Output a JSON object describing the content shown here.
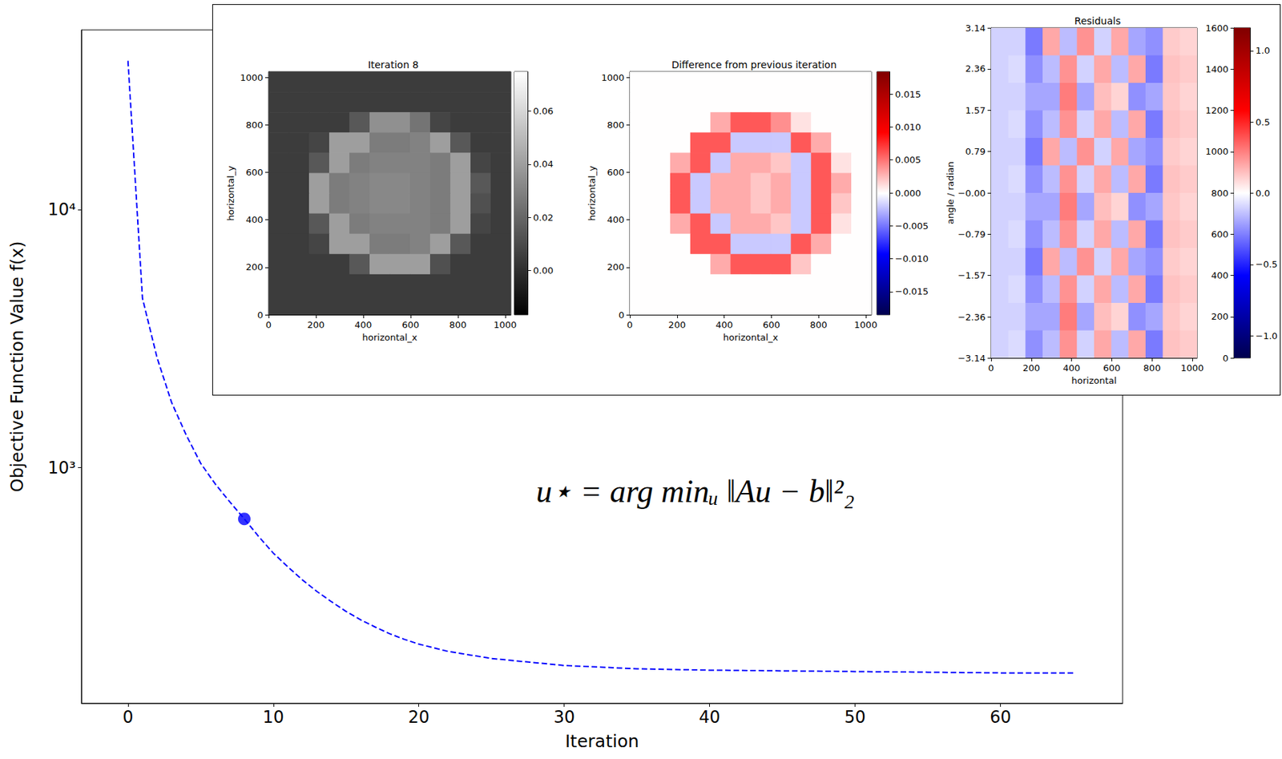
{
  "chart_data": [
    {
      "type": "line",
      "x_label": "Iteration",
      "y_label": "Objective Function Value f(x)",
      "annotation": "u⋆ = arg minᵤ ‖Au − b‖²₂",
      "x": [
        0,
        1,
        2,
        3,
        4,
        5,
        6,
        7,
        8,
        9,
        10,
        11,
        12,
        13,
        14,
        15,
        16,
        17,
        18,
        19,
        20,
        22,
        25,
        30,
        35,
        40,
        45,
        50,
        55,
        60,
        65
      ],
      "series": [
        {
          "values": [
            37800,
            4530,
            2670,
            1790,
            1340,
            1040,
            865,
            737,
            633,
            540,
            466,
            412,
            367,
            331,
            302,
            277,
            257,
            241,
            227,
            216,
            207,
            194,
            182,
            171,
            166,
            164,
            163,
            162,
            161,
            160,
            160
          ],
          "color": "#0000ff",
          "line_style": "dashed",
          "marker": "none"
        },
        {
          "type": "scatter",
          "x": [
            8
          ],
          "values": [
            633
          ],
          "color": "#0000ff",
          "marker": "circle"
        }
      ],
      "xlim": [
        -3.2,
        68.4
      ],
      "xticks": [
        0,
        10,
        20,
        30,
        40,
        50,
        60
      ],
      "ylim": [
        122,
        49800
      ],
      "yticks": [
        {
          "value": 1000,
          "label": "10³"
        },
        {
          "value": 10000,
          "label": "10⁴"
        }
      ],
      "log": "y",
      "grid": false
    },
    {
      "type": "heatmap",
      "title": "Iteration 8",
      "x_label": "horizontal_x",
      "y_label": "horizontal_y",
      "xlim": [
        0,
        1024
      ],
      "xticks": [
        0,
        200,
        400,
        600,
        800,
        1000
      ],
      "ylim": [
        0,
        1024
      ],
      "yticks": [
        0,
        200,
        400,
        600,
        800,
        1000
      ],
      "color": "gray",
      "cells": [
        [
          0.005,
          0.005,
          0.005,
          0.005,
          0.005,
          0.005,
          0.005,
          0.005,
          0.005,
          0.005,
          0.005,
          0.005
        ],
        [
          0.005,
          0.005,
          0.005,
          0.005,
          0.005,
          0.005,
          0.005,
          0.005,
          0.005,
          0.005,
          0.005,
          0.005
        ],
        [
          0.005,
          0.005,
          0.005,
          0.005,
          0.015,
          0.035,
          0.035,
          0.025,
          0.008,
          0.005,
          0.005,
          0.005
        ],
        [
          0.005,
          0.005,
          0.008,
          0.04,
          0.04,
          0.028,
          0.028,
          0.03,
          0.04,
          0.015,
          0.005,
          0.005
        ],
        [
          0.005,
          0.005,
          0.015,
          0.04,
          0.028,
          0.03,
          0.03,
          0.03,
          0.028,
          0.04,
          0.008,
          0.005
        ],
        [
          0.005,
          0.005,
          0.04,
          0.028,
          0.03,
          0.032,
          0.032,
          0.03,
          0.028,
          0.04,
          0.015,
          0.005
        ],
        [
          0.005,
          0.005,
          0.04,
          0.028,
          0.03,
          0.032,
          0.032,
          0.03,
          0.028,
          0.04,
          0.012,
          0.005
        ],
        [
          0.005,
          0.005,
          0.015,
          0.04,
          0.028,
          0.03,
          0.03,
          0.03,
          0.028,
          0.04,
          0.008,
          0.005
        ],
        [
          0.005,
          0.005,
          0.008,
          0.04,
          0.04,
          0.028,
          0.028,
          0.03,
          0.04,
          0.015,
          0.005,
          0.005
        ],
        [
          0.005,
          0.005,
          0.005,
          0.005,
          0.015,
          0.04,
          0.04,
          0.04,
          0.012,
          0.005,
          0.005,
          0.005
        ],
        [
          0.005,
          0.005,
          0.005,
          0.005,
          0.005,
          0.005,
          0.005,
          0.005,
          0.005,
          0.005,
          0.005,
          0.005
        ],
        [
          0.005,
          0.005,
          0.005,
          0.005,
          0.005,
          0.005,
          0.005,
          0.005,
          0.005,
          0.005,
          0.005,
          0.005
        ]
      ],
      "colorbar_lim": [
        -0.0166,
        0.0748
      ],
      "colorbar_ticks": [
        {
          "value": 0,
          "label": "0.00"
        },
        0.02,
        0.04,
        0.06
      ]
    },
    {
      "type": "heatmap",
      "title": "Difference from previous iteration",
      "x_label": "horizontal_x",
      "y_label": "horizontal_y",
      "xlim": [
        0,
        1024
      ],
      "xticks": [
        0,
        200,
        400,
        600,
        800,
        1000
      ],
      "ylim": [
        0,
        1024
      ],
      "yticks": [
        0,
        200,
        400,
        600,
        800,
        1000
      ],
      "color": "seismic",
      "cells": [
        [
          0,
          0,
          0,
          0,
          0,
          0,
          0,
          0,
          0,
          0,
          0,
          0
        ],
        [
          0,
          0,
          0,
          0,
          0,
          0,
          0,
          0,
          0,
          0,
          0,
          0
        ],
        [
          0,
          0,
          0,
          0,
          0.003,
          0.006,
          0.006,
          0.004,
          0.001,
          0,
          0,
          0
        ],
        [
          0,
          0,
          0,
          0.006,
          0.006,
          -0.002,
          -0.002,
          -0.002,
          0.006,
          0.003,
          0,
          0
        ],
        [
          0,
          0,
          0.003,
          0.006,
          -0.002,
          0.003,
          0.003,
          0.002,
          -0.002,
          0.006,
          0.001,
          0
        ],
        [
          0,
          0,
          0.006,
          -0.002,
          0.003,
          0.003,
          0.002,
          0.003,
          -0.002,
          0.006,
          0.003,
          0
        ],
        [
          0,
          0,
          0.006,
          -0.002,
          0.003,
          0.003,
          0.002,
          0.003,
          -0.002,
          0.006,
          0.002,
          0
        ],
        [
          0,
          0,
          0.003,
          0.006,
          -0.002,
          0.003,
          0.003,
          0.002,
          -0.002,
          0.006,
          0.001,
          0
        ],
        [
          0,
          0,
          0,
          0.006,
          0.006,
          -0.002,
          -0.002,
          -0.002,
          0.006,
          0.003,
          0,
          0
        ],
        [
          0,
          0,
          0,
          0,
          0.003,
          0.006,
          0.006,
          0.006,
          0.002,
          0,
          0,
          0
        ],
        [
          0,
          0,
          0,
          0,
          0,
          0,
          0,
          0,
          0,
          0,
          0,
          0
        ],
        [
          0,
          0,
          0,
          0,
          0,
          0,
          0,
          0,
          0,
          0,
          0,
          0
        ]
      ],
      "colorbar_lim": [
        -0.0185,
        0.0184
      ],
      "colorbar_ticks": [
        {
          "value": -0.015,
          "label": "−0.015"
        },
        {
          "value": -0.01,
          "label": "−0.010"
        },
        {
          "value": -0.005,
          "label": "−0.005"
        },
        {
          "value": 0,
          "label": "0.000"
        },
        0.005,
        {
          "value": 0.01,
          "label": "0.010"
        },
        0.015
      ]
    },
    {
      "type": "heatmap",
      "title": "Residuals",
      "x_label": "horizontal",
      "y_label": "angle / radian",
      "xlim": [
        0,
        1024
      ],
      "xticks": [
        0,
        200,
        400,
        600,
        800,
        1000
      ],
      "ylim": [
        -3.14,
        3.14
      ],
      "yticks": [
        {
          "value": -3.14,
          "label": "−3.14"
        },
        {
          "value": -2.36,
          "label": "−2.36"
        },
        {
          "value": -1.57,
          "label": "−1.57"
        },
        {
          "value": -0.79,
          "label": "−0.79"
        },
        {
          "value": 0,
          "label": "−0.00"
        },
        0.79,
        1.57,
        2.36,
        3.14
      ],
      "color": "seismic",
      "cells": [
        [
          -0.1,
          -0.1,
          -0.3,
          0.2,
          -0.15,
          0.25,
          -0.1,
          0.2,
          -0.2,
          -0.25,
          0.12,
          0.1
        ],
        [
          -0.1,
          -0.08,
          -0.25,
          -0.15,
          0.25,
          -0.1,
          0.2,
          -0.15,
          0.2,
          -0.3,
          0.14,
          0.12
        ],
        [
          -0.1,
          -0.1,
          -0.2,
          -0.2,
          0.3,
          -0.2,
          0.15,
          0.1,
          -0.25,
          -0.2,
          0.13,
          0.1
        ],
        [
          -0.1,
          -0.08,
          -0.25,
          -0.15,
          0.25,
          -0.1,
          0.2,
          -0.15,
          0.2,
          -0.3,
          0.14,
          0.12
        ],
        [
          -0.1,
          -0.1,
          -0.3,
          0.2,
          -0.15,
          0.25,
          -0.1,
          0.2,
          -0.2,
          -0.25,
          0.12,
          0.1
        ],
        [
          -0.1,
          -0.08,
          -0.25,
          -0.15,
          0.25,
          -0.1,
          0.2,
          -0.15,
          0.2,
          -0.3,
          0.14,
          0.12
        ],
        [
          -0.1,
          -0.1,
          -0.2,
          -0.2,
          0.3,
          -0.2,
          0.15,
          0.1,
          -0.25,
          -0.2,
          0.13,
          0.1
        ],
        [
          -0.1,
          -0.08,
          -0.25,
          -0.15,
          0.25,
          -0.1,
          0.2,
          -0.15,
          0.2,
          -0.3,
          0.14,
          0.12
        ],
        [
          -0.1,
          -0.1,
          -0.3,
          0.2,
          -0.15,
          0.25,
          -0.1,
          0.2,
          -0.2,
          -0.25,
          0.12,
          0.1
        ],
        [
          -0.1,
          -0.08,
          -0.25,
          -0.15,
          0.25,
          -0.1,
          0.2,
          -0.15,
          0.2,
          -0.3,
          0.14,
          0.12
        ],
        [
          -0.1,
          -0.1,
          -0.2,
          -0.2,
          0.3,
          -0.2,
          0.15,
          0.1,
          -0.25,
          -0.2,
          0.13,
          0.1
        ],
        [
          -0.1,
          -0.08,
          -0.25,
          -0.15,
          0.25,
          -0.1,
          0.2,
          -0.15,
          0.2,
          -0.3,
          0.14,
          0.12
        ]
      ],
      "colorbar_lim": [
        -1.155,
        1.16
      ],
      "colorbar_ticks": [
        {
          "value": -1,
          "label": "−1.0"
        },
        {
          "value": -0.5,
          "label": "−0.5"
        },
        {
          "value": 0,
          "label": "0.0"
        },
        0.5,
        {
          "value": 1,
          "label": "1.0"
        }
      ],
      "colorbar2_lim": [
        0,
        1600
      ],
      "colorbar2_ticks": [
        0,
        200,
        400,
        600,
        800,
        1000,
        1200,
        1400,
        1600
      ]
    }
  ]
}
